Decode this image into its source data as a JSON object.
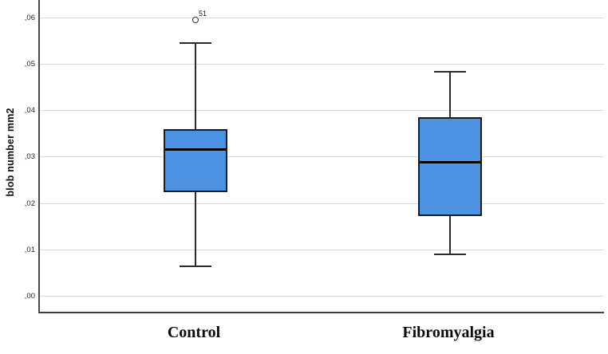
{
  "chart_data": {
    "type": "boxplot",
    "title": "",
    "ylabel": "blob number mm2",
    "xlabel": "",
    "categories": [
      "Control",
      "Fibromyalgia"
    ],
    "y_tick_labels": [
      ",00",
      ",01",
      ",02",
      ",03",
      ",04",
      ",05",
      ",06"
    ],
    "y_tick_values": [
      0.0,
      0.01,
      0.02,
      0.03,
      0.04,
      0.05,
      0.06
    ],
    "ylim": [
      -0.0034,
      0.0638
    ],
    "grid": "horizontal",
    "decimal_style": "comma",
    "legend": "none",
    "series": [
      {
        "name": "Control",
        "whisker_low": 0.0065,
        "q1": 0.0225,
        "median": 0.0317,
        "q3": 0.036,
        "whisker_high": 0.0545,
        "outliers": [
          {
            "value": 0.0596,
            "label": "51",
            "marker": "open-circle"
          }
        ]
      },
      {
        "name": "Fibromyalgia",
        "whisker_low": 0.009,
        "q1": 0.0173,
        "median": 0.0288,
        "q3": 0.0385,
        "whisker_high": 0.0483,
        "outliers": []
      }
    ],
    "colors": {
      "box_fill": "#4d92e2",
      "box_border": "#1c1c1c",
      "median": "#000000",
      "whisker": "#2b2b2b",
      "gridline": "#d9d9d9",
      "axis": "#4a4a4a",
      "tick_text": "#1f1f1f",
      "background": "#ffffff"
    }
  }
}
